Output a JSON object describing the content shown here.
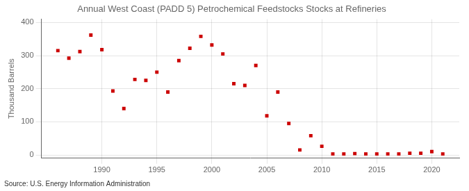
{
  "chart_data": {
    "type": "scatter",
    "title": "Annual West Coast (PADD 5) Petrochemical Feedstocks Stocks at Refineries",
    "ylabel": "Thousand Barrels",
    "annotations": [
      "Source: U.S. Energy Information Administration"
    ],
    "x": [
      1986,
      1987,
      1988,
      1989,
      1990,
      1991,
      1992,
      1993,
      1994,
      1995,
      1996,
      1997,
      1998,
      1999,
      2000,
      2001,
      2002,
      2003,
      2004,
      2005,
      2006,
      2007,
      2008,
      2009,
      2010,
      2011,
      2012,
      2013,
      2014,
      2015,
      2016,
      2017,
      2018,
      2019,
      2020,
      2021
    ],
    "values": [
      315,
      292,
      312,
      362,
      318,
      193,
      140,
      228,
      225,
      250,
      190,
      285,
      322,
      358,
      332,
      305,
      215,
      210,
      270,
      118,
      190,
      95,
      15,
      58,
      26,
      3,
      3,
      4,
      3,
      3,
      3,
      3,
      5,
      5,
      10,
      3
    ],
    "color": "#cc0000",
    "marker": "square",
    "xlim": [
      1984.5,
      2022.5
    ],
    "xticks": [
      1990,
      1995,
      2000,
      2005,
      2010,
      2015,
      2020
    ],
    "ylim": [
      -10,
      410
    ],
    "yticks": [
      0,
      100,
      200,
      300,
      400
    ],
    "grid": true
  }
}
